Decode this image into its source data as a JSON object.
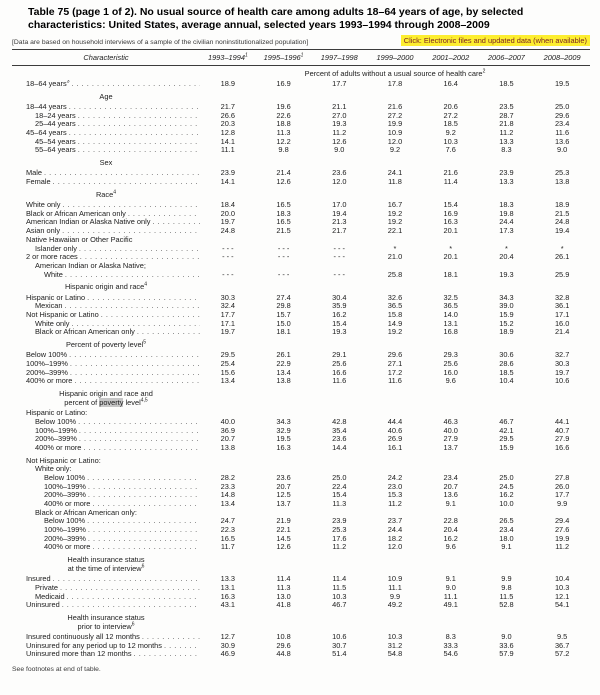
{
  "header": {
    "title": "Table 75 (page 1 of 2). No usual source of health care among adults 18–64 years of age, by selected characteristics: United States, average annual, selected years 1993–1994 through 2008–2009",
    "data_note": "[Data are based on household interviews of a sample of the civilian noninstitutionalized population]",
    "link_label": "Click: Electronic files and updated data (when available)",
    "link_highlight_color": "#fdee30",
    "link_text_color": "#7a2424"
  },
  "table": {
    "characteristic_header": "Characteristic",
    "search_highlight_color": "#c6c6c6",
    "year_columns": [
      {
        "label": "1993–1994",
        "sup": "1"
      },
      {
        "label": "1995–1996",
        "sup": "1"
      },
      {
        "label": "1997–1998",
        "sup": ""
      },
      {
        "label": "1999–2000",
        "sup": ""
      },
      {
        "label": "2001–2002",
        "sup": ""
      },
      {
        "label": "2006–2007",
        "sup": ""
      },
      {
        "label": "2008–2009",
        "sup": ""
      }
    ],
    "unit_header": {
      "text": "Percent of adults without a usual source of health care",
      "sup": "2"
    },
    "rows": [
      {
        "t": "d",
        "label": "18–64 years",
        "sup": "3",
        "ind": 0,
        "v": [
          "18.9",
          "16.9",
          "17.7",
          "17.8",
          "16.4",
          "18.5",
          "19.5"
        ]
      },
      {
        "t": "sec",
        "lines": [
          [
            {
              "v": "Age"
            }
          ]
        ]
      },
      {
        "t": "d",
        "label": "18–44 years",
        "ind": 0,
        "v": [
          "21.7",
          "19.6",
          "21.1",
          "21.6",
          "20.6",
          "23.5",
          "25.0"
        ]
      },
      {
        "t": "d",
        "label": "18–24 years",
        "ind": 1,
        "v": [
          "26.6",
          "22.6",
          "27.0",
          "27.2",
          "27.2",
          "28.7",
          "29.6"
        ]
      },
      {
        "t": "d",
        "label": "25–44 years",
        "ind": 1,
        "v": [
          "20.3",
          "18.8",
          "19.3",
          "19.9",
          "18.5",
          "21.8",
          "23.4"
        ]
      },
      {
        "t": "d",
        "label": "45–64 years",
        "ind": 0,
        "v": [
          "12.8",
          "11.3",
          "11.2",
          "10.9",
          "9.2",
          "11.2",
          "11.6"
        ]
      },
      {
        "t": "d",
        "label": "45–54 years",
        "ind": 1,
        "v": [
          "14.1",
          "12.2",
          "12.6",
          "12.0",
          "10.3",
          "13.3",
          "13.6"
        ]
      },
      {
        "t": "d",
        "label": "55–64 years",
        "ind": 1,
        "v": [
          "11.1",
          "9.8",
          "9.0",
          "9.2",
          "7.6",
          "8.3",
          "9.0"
        ]
      },
      {
        "t": "sec",
        "lines": [
          [
            {
              "v": "Sex"
            }
          ]
        ]
      },
      {
        "t": "d",
        "label": "Male",
        "ind": 0,
        "v": [
          "23.9",
          "21.4",
          "23.6",
          "24.1",
          "21.6",
          "23.9",
          "25.3"
        ]
      },
      {
        "t": "d",
        "label": "Female",
        "ind": 0,
        "v": [
          "14.1",
          "12.6",
          "12.0",
          "11.8",
          "11.4",
          "13.3",
          "13.8"
        ]
      },
      {
        "t": "sec",
        "lines": [
          [
            {
              "v": "Race"
            },
            {
              "v": "4",
              "sup": true
            }
          ]
        ]
      },
      {
        "t": "d",
        "label": "White only",
        "ind": 0,
        "v": [
          "18.4",
          "16.5",
          "17.0",
          "16.7",
          "15.4",
          "18.3",
          "18.9"
        ]
      },
      {
        "t": "d",
        "label": "Black or African American only",
        "ind": 0,
        "v": [
          "20.0",
          "18.3",
          "19.4",
          "19.2",
          "16.9",
          "19.8",
          "21.5"
        ]
      },
      {
        "t": "d",
        "label": "American Indian or Alaska Native only",
        "ind": 0,
        "v": [
          "19.7",
          "16.5",
          "21.3",
          "19.2",
          "16.3",
          "24.4",
          "24.8"
        ]
      },
      {
        "t": "d",
        "label": "Asian only",
        "ind": 0,
        "v": [
          "24.8",
          "21.5",
          "21.7",
          "22.1",
          "20.1",
          "17.3",
          "19.4"
        ]
      },
      {
        "t": "grp",
        "label": "Native Hawaiian or Other Pacific",
        "ind": 0
      },
      {
        "t": "d",
        "label": "Islander only",
        "ind": 1,
        "v": [
          "- - -",
          "- - -",
          "- - -",
          "*",
          "*",
          "*",
          "*"
        ]
      },
      {
        "t": "d",
        "label": "2 or more races",
        "ind": 0,
        "v": [
          "- - -",
          "- - -",
          "- - -",
          "21.0",
          "20.1",
          "20.4",
          "26.1"
        ]
      },
      {
        "t": "grp",
        "label": "American Indian or Alaska Native;",
        "ind": 1
      },
      {
        "t": "d",
        "label": "White",
        "ind": 2,
        "v": [
          "- - -",
          "- - -",
          "- - -",
          "25.8",
          "18.1",
          "19.3",
          "25.9"
        ]
      },
      {
        "t": "sec",
        "lines": [
          [
            {
              "v": "Hispanic origin and race"
            },
            {
              "v": "4",
              "sup": true
            }
          ]
        ]
      },
      {
        "t": "d",
        "label": "Hispanic or Latino",
        "ind": 0,
        "v": [
          "30.3",
          "27.4",
          "30.4",
          "32.6",
          "32.5",
          "34.3",
          "32.8"
        ]
      },
      {
        "t": "d",
        "label": "Mexican",
        "ind": 1,
        "v": [
          "32.4",
          "29.8",
          "35.9",
          "36.5",
          "36.5",
          "39.0",
          "36.1"
        ]
      },
      {
        "t": "d",
        "label": "Not Hispanic or Latino",
        "ind": 0,
        "v": [
          "17.7",
          "15.7",
          "16.2",
          "15.8",
          "14.0",
          "15.9",
          "17.1"
        ]
      },
      {
        "t": "d",
        "label": "White only",
        "ind": 1,
        "v": [
          "17.1",
          "15.0",
          "15.4",
          "14.9",
          "13.1",
          "15.2",
          "16.0"
        ]
      },
      {
        "t": "d",
        "label": "Black or African American only",
        "ind": 1,
        "v": [
          "19.7",
          "18.1",
          "19.3",
          "19.2",
          "16.8",
          "18.9",
          "21.4"
        ]
      },
      {
        "t": "sec",
        "lines": [
          [
            {
              "v": "Percent of poverty level"
            },
            {
              "v": "5",
              "sup": true
            }
          ]
        ]
      },
      {
        "t": "d",
        "label": "Below 100%",
        "ind": 0,
        "v": [
          "29.5",
          "26.1",
          "29.1",
          "29.6",
          "29.3",
          "30.6",
          "32.7"
        ]
      },
      {
        "t": "d",
        "label": "100%–199%",
        "ind": 0,
        "v": [
          "25.4",
          "22.9",
          "25.6",
          "27.1",
          "25.6",
          "28.6",
          "30.3"
        ]
      },
      {
        "t": "d",
        "label": "200%–399%",
        "ind": 0,
        "v": [
          "15.6",
          "13.4",
          "16.6",
          "17.2",
          "16.0",
          "18.5",
          "19.7"
        ]
      },
      {
        "t": "d",
        "label": "400% or more",
        "ind": 0,
        "v": [
          "13.4",
          "13.8",
          "11.6",
          "11.6",
          "9.6",
          "10.4",
          "10.6"
        ]
      },
      {
        "t": "sec",
        "lines": [
          [
            {
              "v": "Hispanic origin and race and"
            }
          ],
          [
            {
              "v": "percent of "
            },
            {
              "v": "poverty",
              "hl": true
            },
            {
              "v": " level"
            },
            {
              "v": "4,5",
              "sup": true
            }
          ]
        ]
      },
      {
        "t": "grp",
        "label": "Hispanic or Latino:",
        "ind": 0
      },
      {
        "t": "d",
        "label": "Below 100%",
        "ind": 1,
        "v": [
          "40.0",
          "34.3",
          "42.8",
          "44.4",
          "46.3",
          "46.7",
          "44.1"
        ]
      },
      {
        "t": "d",
        "label": "100%–199%",
        "ind": 1,
        "v": [
          "36.9",
          "32.9",
          "35.4",
          "40.6",
          "40.0",
          "42.1",
          "40.7"
        ]
      },
      {
        "t": "d",
        "label": "200%–399%",
        "ind": 1,
        "v": [
          "20.7",
          "19.5",
          "23.6",
          "26.9",
          "27.9",
          "29.5",
          "27.9"
        ]
      },
      {
        "t": "d",
        "label": "400% or more",
        "ind": 1,
        "v": [
          "13.8",
          "16.3",
          "14.4",
          "16.1",
          "13.7",
          "15.9",
          "16.6"
        ]
      },
      {
        "t": "sp"
      },
      {
        "t": "grp",
        "label": "Not Hispanic or Latino:",
        "ind": 0
      },
      {
        "t": "grp",
        "label": "White only:",
        "ind": 1
      },
      {
        "t": "d",
        "label": "Below 100%",
        "ind": 2,
        "v": [
          "28.2",
          "23.6",
          "25.0",
          "24.2",
          "23.4",
          "25.0",
          "27.8"
        ]
      },
      {
        "t": "d",
        "label": "100%–199%",
        "ind": 2,
        "v": [
          "23.3",
          "20.7",
          "22.4",
          "23.0",
          "20.7",
          "24.5",
          "26.0"
        ]
      },
      {
        "t": "d",
        "label": "200%–399%",
        "ind": 2,
        "v": [
          "14.8",
          "12.5",
          "15.4",
          "15.3",
          "13.6",
          "16.2",
          "17.7"
        ]
      },
      {
        "t": "d",
        "label": "400% or more",
        "ind": 2,
        "v": [
          "13.4",
          "13.7",
          "11.3",
          "11.2",
          "9.1",
          "10.0",
          "9.9"
        ]
      },
      {
        "t": "grp",
        "label": "Black or African American only:",
        "ind": 1
      },
      {
        "t": "d",
        "label": "Below 100%",
        "ind": 2,
        "v": [
          "24.7",
          "21.9",
          "23.9",
          "23.7",
          "22.8",
          "26.5",
          "29.4"
        ]
      },
      {
        "t": "d",
        "label": "100%–199%",
        "ind": 2,
        "v": [
          "22.3",
          "22.1",
          "25.3",
          "24.4",
          "20.4",
          "23.4",
          "27.6"
        ]
      },
      {
        "t": "d",
        "label": "200%–399%",
        "ind": 2,
        "v": [
          "16.5",
          "14.5",
          "17.6",
          "18.2",
          "16.2",
          "18.0",
          "19.9"
        ]
      },
      {
        "t": "d",
        "label": "400% or more",
        "ind": 2,
        "v": [
          "11.7",
          "12.6",
          "11.2",
          "12.0",
          "9.6",
          "9.1",
          "11.2"
        ]
      },
      {
        "t": "sec",
        "lines": [
          [
            {
              "v": "Health insurance status"
            }
          ],
          [
            {
              "v": "at the time of interview"
            },
            {
              "v": "6",
              "sup": true
            }
          ]
        ]
      },
      {
        "t": "d",
        "label": "Insured",
        "ind": 0,
        "v": [
          "13.3",
          "11.4",
          "11.4",
          "10.9",
          "9.1",
          "9.9",
          "10.4"
        ]
      },
      {
        "t": "d",
        "label": "Private",
        "ind": 1,
        "v": [
          "13.1",
          "11.3",
          "11.5",
          "11.1",
          "9.0",
          "9.8",
          "10.3"
        ]
      },
      {
        "t": "d",
        "label": "Medicaid",
        "ind": 1,
        "v": [
          "16.3",
          "13.0",
          "10.3",
          "9.9",
          "11.1",
          "11.5",
          "12.1"
        ]
      },
      {
        "t": "d",
        "label": "Uninsured",
        "ind": 0,
        "v": [
          "43.1",
          "41.8",
          "46.7",
          "49.2",
          "49.1",
          "52.8",
          "54.1"
        ]
      },
      {
        "t": "sec",
        "lines": [
          [
            {
              "v": "Health insurance status"
            }
          ],
          [
            {
              "v": "prior to interview"
            },
            {
              "v": "6",
              "sup": true
            }
          ]
        ]
      },
      {
        "t": "d",
        "label": "Insured continuously all 12 months",
        "ind": 0,
        "v": [
          "12.7",
          "10.8",
          "10.6",
          "10.3",
          "8.3",
          "9.0",
          "9.5"
        ]
      },
      {
        "t": "d",
        "label": "Uninsured for any period up to 12 months",
        "ind": 0,
        "v": [
          "30.9",
          "29.6",
          "30.7",
          "31.2",
          "33.3",
          "33.6",
          "36.7"
        ]
      },
      {
        "t": "d",
        "label": "Uninsured more than 12 months",
        "ind": 0,
        "v": [
          "46.9",
          "44.8",
          "51.4",
          "54.8",
          "54.6",
          "57.9",
          "57.2"
        ]
      }
    ],
    "footnote": "See footnotes at end of table."
  }
}
